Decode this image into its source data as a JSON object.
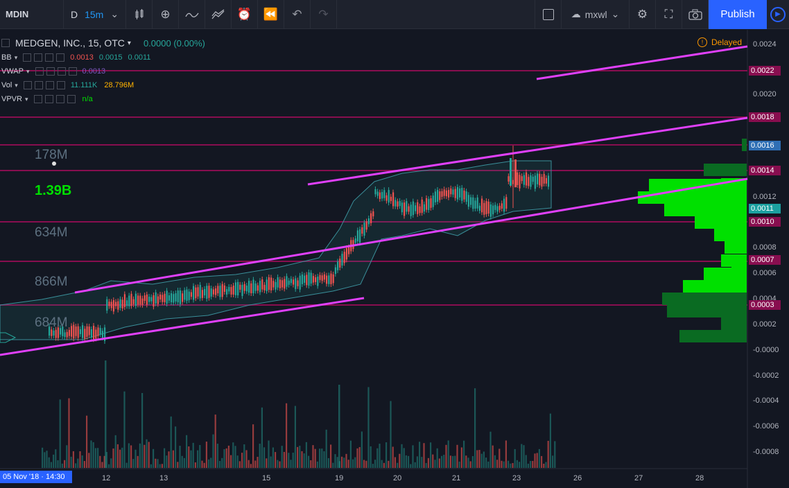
{
  "toolbar": {
    "symbol": "MDIN",
    "interval_prefix": "D",
    "interval": "15m",
    "layout_name": "mxwl",
    "publish": "Publish",
    "icons": [
      "candles-icon",
      "add-indicator-icon",
      "compare-icon",
      "templates-icon",
      "alert-icon",
      "replay-icon",
      "undo-icon",
      "redo-icon",
      "fullscreen-box-icon",
      "cloud-icon",
      "settings-icon",
      "fullscreen-icon",
      "camera-icon",
      "play-icon"
    ]
  },
  "legend": {
    "title": "MEDGEN, INC., 15, OTC",
    "change": "0.0000 (0.00%)",
    "bb": {
      "name": "BB",
      "v1": "0.0013",
      "v2": "0.0015",
      "v3": "0.0011"
    },
    "vwap": {
      "name": "VWAP",
      "v1": "0.0013"
    },
    "vol": {
      "name": "Vol",
      "v1": "11.111K",
      "v2": "28.796M"
    },
    "vpvr": {
      "name": "VPVR",
      "v1": "n/a"
    }
  },
  "status": {
    "delayed": "Delayed"
  },
  "volume_annotations": [
    {
      "text": "178M",
      "highlight": false
    },
    {
      "text": "1.39B",
      "highlight": true
    },
    {
      "text": "634M",
      "highlight": false
    },
    {
      "text": "866M",
      "highlight": false
    },
    {
      "text": "684M",
      "highlight": false
    }
  ],
  "price_axis": {
    "ticks": [
      "0.0024",
      "0.0020",
      "0.0012",
      "0.0008",
      "0.0006",
      "0.0004",
      "0.0002",
      "-0.0000",
      "-0.0002",
      "-0.0004",
      "-0.0006",
      "-0.0008"
    ],
    "tags": [
      {
        "text": "0.0022",
        "color": "#880e4f"
      },
      {
        "text": "0.0018",
        "color": "#880e4f"
      },
      {
        "text": "0.0016",
        "color": "#2f6fb5"
      },
      {
        "text": "0.0014",
        "color": "#880e4f"
      },
      {
        "text": "0.0011",
        "color": "#1ba0a0"
      },
      {
        "text": "0.0010",
        "color": "#880e4f"
      },
      {
        "text": "0.0007",
        "color": "#880e4f"
      },
      {
        "text": "0.0003",
        "color": "#880e4f"
      }
    ]
  },
  "time_axis": {
    "current": "05 Nov '18 · 14:30",
    "labels": [
      "12",
      "13",
      "15",
      "19",
      "20",
      "21",
      "23",
      "26",
      "27",
      "28"
    ]
  },
  "colors": {
    "up": "#26a69a",
    "down": "#ef5350",
    "trendline": "#e040fb",
    "hline": "#880e4f",
    "vpvr_light": "#00e000",
    "vpvr_dark": "#0a6b22"
  }
}
